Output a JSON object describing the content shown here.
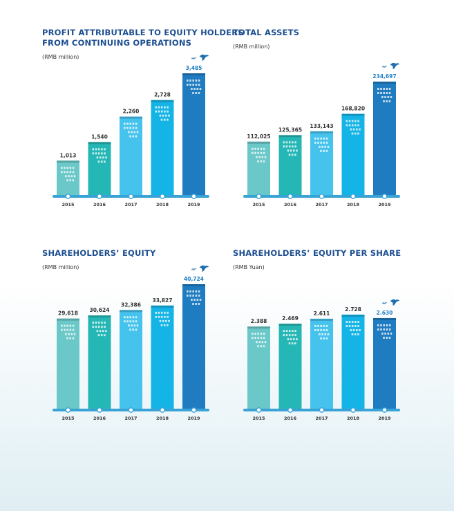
{
  "colors": {
    "title": "#1d4f91",
    "bars": [
      "#6ac8c8",
      "#25b7b5",
      "#46c3ed",
      "#15b4e6",
      "#1f7cc0"
    ],
    "axis": "#3aa3d6",
    "highlight": "#1d7fc4",
    "bird": "#1f6fb0"
  },
  "icons": [
    "bird-icon",
    "window-grid-icon"
  ],
  "chart_data": [
    {
      "type": "bar",
      "title": "PROFIT ATTRIBUTABLE TO EQUITY HOLDERS\nFROM CONTINUING OPERATIONS",
      "unit": "(RMB million)",
      "categories": [
        "2015",
        "2016",
        "2017",
        "2018",
        "2019"
      ],
      "values": [
        1013,
        1540,
        2260,
        2728,
        3485
      ],
      "value_labels": [
        "1,013",
        "1,540",
        "2,260",
        "2,728",
        "3,485"
      ],
      "highlight_index": 4
    },
    {
      "type": "bar",
      "title": "TOTAL ASSETS",
      "unit": "(RMB million)",
      "categories": [
        "2015",
        "2016",
        "2017",
        "2018",
        "2019"
      ],
      "values": [
        112025,
        125365,
        133143,
        168820,
        234697
      ],
      "value_labels": [
        "112,025",
        "125,365",
        "133,143",
        "168,820",
        "234,697"
      ],
      "highlight_index": 4
    },
    {
      "type": "bar",
      "title": "SHAREHOLDERS’ EQUITY",
      "unit": "(RMB million)",
      "categories": [
        "2015",
        "2016",
        "2017",
        "2018",
        "2019"
      ],
      "values": [
        29618,
        30624,
        32386,
        33827,
        40724
      ],
      "value_labels": [
        "29,618",
        "30,624",
        "32,386",
        "33,827",
        "40,724"
      ],
      "highlight_index": 4
    },
    {
      "type": "bar",
      "title": "SHAREHOLDERS’ EQUITY PER SHARE",
      "unit": "(RMB Yuan)",
      "categories": [
        "2015",
        "2016",
        "2017",
        "2018",
        "2019"
      ],
      "values": [
        2.388,
        2.469,
        2.611,
        2.728,
        2.63
      ],
      "value_labels": [
        "2.388",
        "2.469",
        "2.611",
        "2.728",
        "2.630"
      ],
      "highlight_index": 4
    }
  ]
}
